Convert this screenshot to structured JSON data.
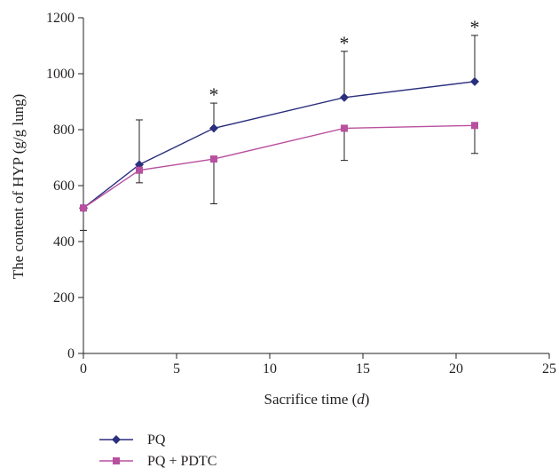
{
  "chart_data": {
    "type": "line",
    "title": "",
    "xlabel_main": "Sacrifice time (",
    "xlabel_var": "d",
    "xlabel_end": ")",
    "ylabel": "The content of HYP (g/g lung)",
    "xlim": [
      0,
      25
    ],
    "ylim": [
      0,
      1200
    ],
    "xticks": [
      0,
      5,
      10,
      15,
      20,
      25
    ],
    "yticks": [
      0,
      200,
      400,
      600,
      800,
      1000,
      1200
    ],
    "grid": false,
    "legend_position": "bottom-left",
    "significance_marker": "*",
    "significant_x": [
      7,
      14,
      21
    ],
    "series": [
      {
        "name": "PQ",
        "marker": "diamond",
        "color": "#2b2f7e",
        "x": [
          0,
          3,
          7,
          14,
          21
        ],
        "values": [
          520,
          675,
          805,
          915,
          972
        ],
        "error": [
          null,
          160,
          90,
          165,
          165
        ],
        "error_direction": "up"
      },
      {
        "name": "PQ + PDTC",
        "marker": "square",
        "color": "#b8509f",
        "x": [
          0,
          3,
          7,
          14,
          21
        ],
        "values": [
          520,
          655,
          695,
          805,
          815
        ],
        "error": [
          80,
          45,
          160,
          115,
          100
        ],
        "error_direction": "down"
      }
    ]
  }
}
